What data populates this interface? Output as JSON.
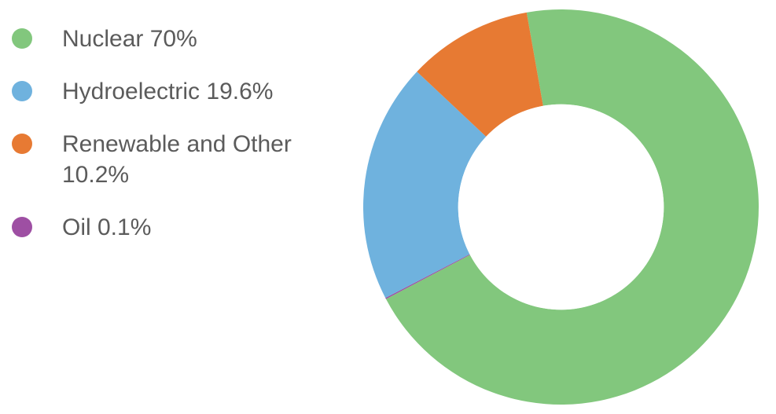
{
  "chart": {
    "type": "donut",
    "background_color": "#ffffff",
    "label_color": "#5b5b5b",
    "label_fontsize": 30,
    "dot_diameter": 26,
    "inner_radius_ratio": 0.52,
    "start_angle_deg": -10,
    "direction": "clockwise",
    "segments": [
      {
        "key": "nuclear",
        "label": "Nuclear 70%",
        "value": 70.0,
        "color": "#82c77d"
      },
      {
        "key": "oil",
        "label": "Oil 0.1%",
        "value": 0.1,
        "color": "#9e4fa3"
      },
      {
        "key": "hydro",
        "label": "Hydroelectric 19.6%",
        "value": 19.6,
        "color": "#6fb2de"
      },
      {
        "key": "renewable",
        "label": "Renewable and Other 10.2%",
        "value": 10.2,
        "color": "#e77a33"
      }
    ],
    "legend_order": [
      "nuclear",
      "hydro",
      "renewable",
      "oil"
    ]
  }
}
